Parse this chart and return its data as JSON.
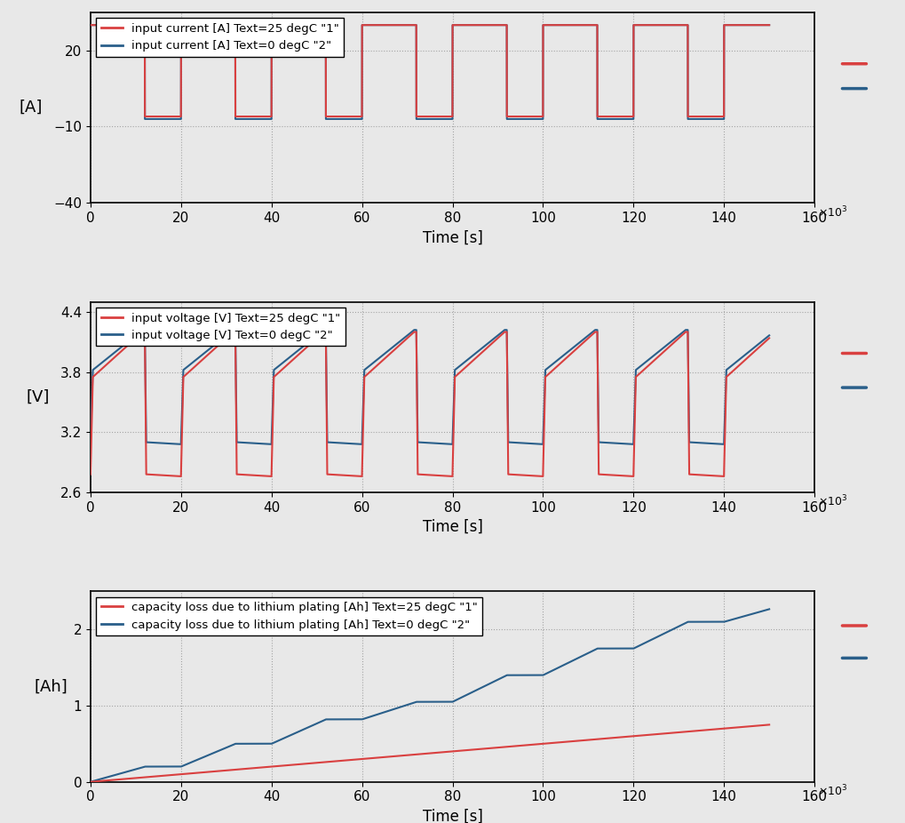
{
  "fig_width": 10.19,
  "fig_height": 9.26,
  "background_color": "#e8e8e8",
  "axes_background": "#e8e8e8",
  "color_red": "#d94040",
  "color_blue": "#2a5f8a",
  "x_max": 160,
  "x_ticks": [
    0,
    20,
    40,
    60,
    80,
    100,
    120,
    140,
    160
  ],
  "x_label": "Time [s]",
  "plot1": {
    "ylabel": "[A]",
    "ylim": [
      -40,
      35
    ],
    "yticks": [
      -40,
      -10,
      20
    ],
    "legend1": "input current [A] Text=25 degC \"1\"",
    "legend2": "input current [A] Text=0 degC \"2\""
  },
  "plot2": {
    "ylabel": "[V]",
    "ylim": [
      2.6,
      4.5
    ],
    "yticks": [
      2.6,
      3.2,
      3.8,
      4.4
    ],
    "legend1": "input voltage [V] Text=25 degC \"1\"",
    "legend2": "input voltage [V] Text=0 degC \"2\""
  },
  "plot3": {
    "ylabel": "[Ah]",
    "ylim": [
      0,
      2.5
    ],
    "yticks": [
      0.0,
      1.0,
      2.0
    ],
    "legend1": "capacity loss due to lithium plating [Ah] Text=25 degC \"1\"",
    "legend2": "capacity loss due to lithium plating [Ah] Text=0 degC \"2\""
  }
}
